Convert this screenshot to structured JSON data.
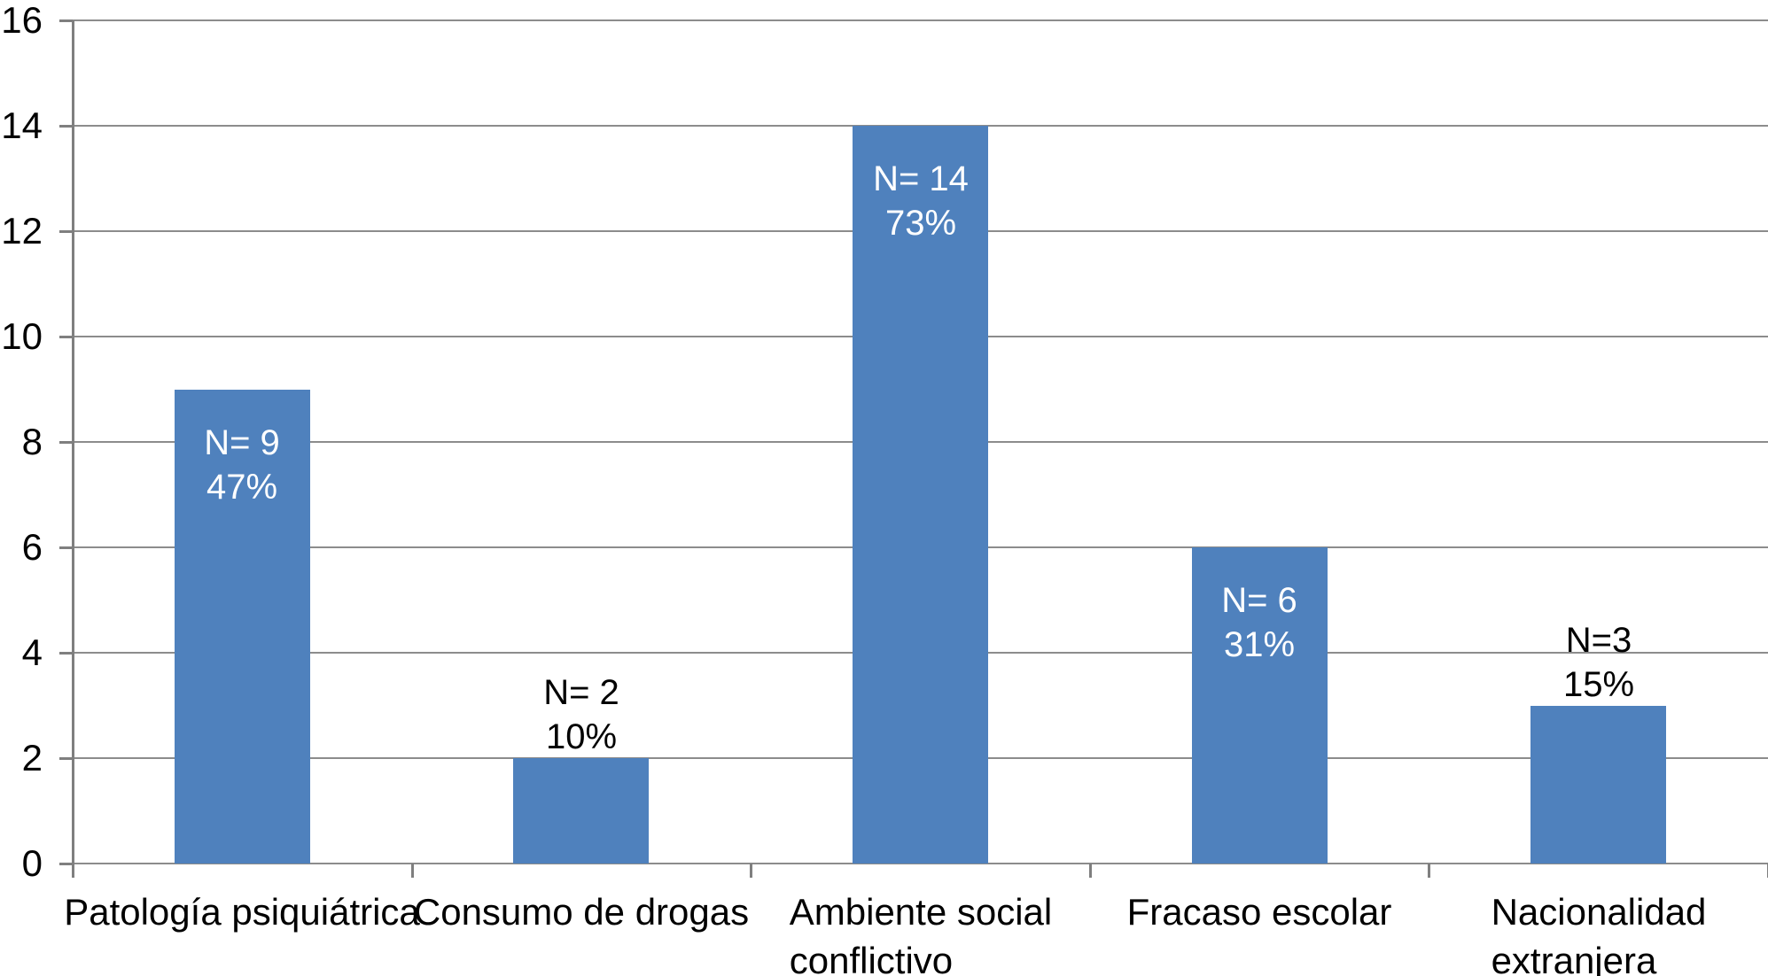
{
  "chart_data": {
    "type": "bar",
    "title": "",
    "xlabel": "",
    "ylabel": "",
    "categories": [
      "Patología psiquiátrica",
      "Consumo de drogas",
      "Ambiente social conflictivo",
      "Fracaso escolar",
      "Nacionalidad extranjera"
    ],
    "category_lines": [
      [
        "Patología psiquiátrica"
      ],
      [
        "Consumo de drogas"
      ],
      [
        "Ambiente social",
        "conflictivo"
      ],
      [
        "Fracaso escolar"
      ],
      [
        "Nacionalidad",
        "extranjera"
      ]
    ],
    "values": [
      9,
      2,
      14,
      6,
      3
    ],
    "bar_labels": [
      {
        "lines": [
          "N= 9",
          "47%"
        ],
        "placement": "inside",
        "color": "#ffffff"
      },
      {
        "lines": [
          "N= 2",
          "10%"
        ],
        "placement": "above",
        "color": "#000000"
      },
      {
        "lines": [
          "N= 14",
          "73%"
        ],
        "placement": "inside",
        "color": "#ffffff"
      },
      {
        "lines": [
          "N= 6",
          "31%"
        ],
        "placement": "inside",
        "color": "#ffffff"
      },
      {
        "lines": [
          "N=3",
          "15%"
        ],
        "placement": "above",
        "color": "#000000"
      }
    ],
    "ylim": [
      0,
      16
    ],
    "yticks": [
      0,
      2,
      4,
      6,
      8,
      10,
      12,
      14,
      16
    ],
    "grid": true,
    "legend": false,
    "legend_position": "none",
    "colors": {
      "bar": "#4F81BD",
      "gridline": "#8C8C8C",
      "axis": "#7F7F7F",
      "label_inside": "#FFFFFF",
      "label_outside": "#000000",
      "tick_label": "#000000",
      "background": "#FFFFFF"
    }
  }
}
